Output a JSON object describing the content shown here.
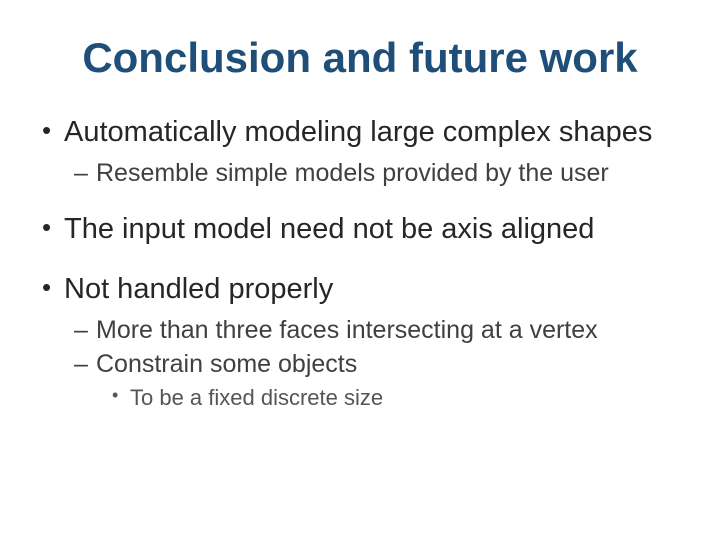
{
  "slide": {
    "title": "Conclusion and future work",
    "title_color": "#1f4e79",
    "title_fontsize": 42,
    "background_color": "#ffffff",
    "body_color": "#262626",
    "sub_color": "#404040",
    "subsub_color": "#555555",
    "body_fontsize": 29,
    "sub_fontsize": 25,
    "subsub_fontsize": 22,
    "bullets": [
      {
        "text": "Automatically modeling large complex shapes",
        "children": [
          {
            "text": "Resemble simple models provided by the user"
          }
        ]
      },
      {
        "text": "The input model need not be axis aligned"
      },
      {
        "text": "Not handled properly",
        "children": [
          {
            "text": "More than three faces intersecting at a vertex"
          },
          {
            "text": "Constrain some objects",
            "children": [
              {
                "text": "To be a fixed discrete size"
              }
            ]
          }
        ]
      }
    ]
  }
}
